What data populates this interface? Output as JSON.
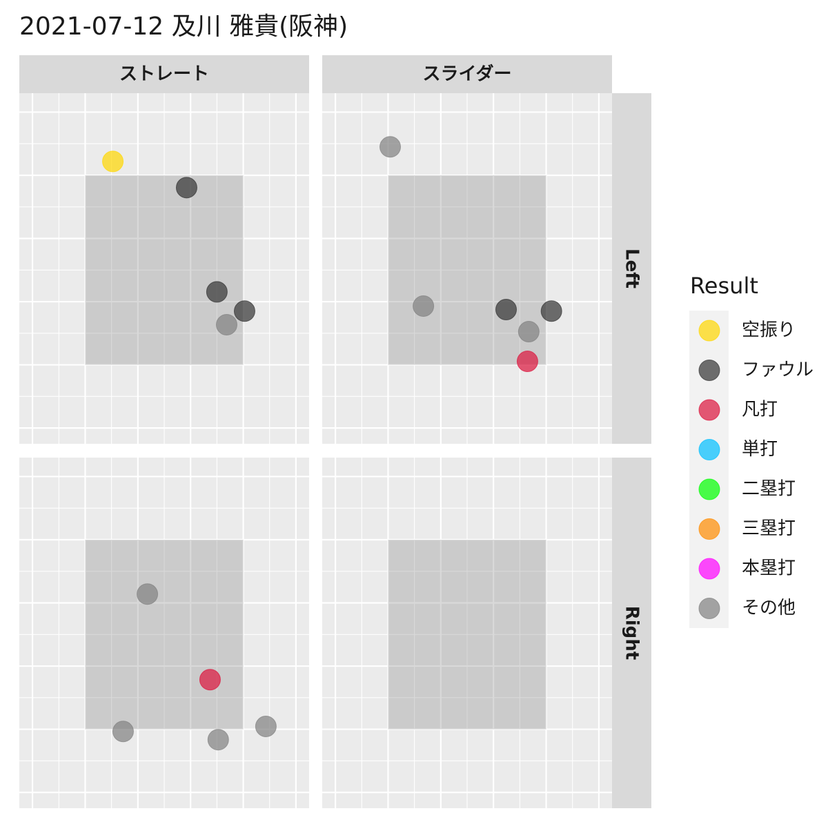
{
  "chart_data": {
    "type": "scatter",
    "title": "2021-07-12 及川 雅貴(阪神)",
    "columns": [
      "ストレート",
      "スライダー"
    ],
    "rows": [
      "Left",
      "Right"
    ],
    "legend_title": "Result",
    "xlim": [
      -2.5,
      8.5
    ],
    "ylim": [
      -2.5,
      8.6
    ],
    "xticks": [
      -2,
      -1,
      0,
      1,
      2,
      3,
      4,
      5,
      6,
      7,
      8
    ],
    "yticks": [
      -2,
      -1,
      0,
      1,
      2,
      3,
      4,
      5,
      6,
      7,
      8
    ],
    "grid": true,
    "zone_x": [
      0,
      6
    ],
    "zone_y": [
      0,
      6
    ],
    "series": [
      {
        "name": "空振り",
        "color": "#FFD700",
        "x": [
          [
            1.05
          ],
          [],
          [],
          []
        ],
        "y": [
          [
            6.44
          ],
          [],
          [],
          []
        ]
      },
      {
        "name": "ファウル",
        "color": "#333333",
        "x": [
          [
            3.85,
            5.0,
            6.05
          ],
          [
            4.48,
            6.2
          ],
          [],
          []
        ],
        "y": [
          [
            5.61,
            2.31,
            1.7
          ],
          [
            1.75,
            1.7
          ],
          [],
          []
        ]
      },
      {
        "name": "凡打",
        "color": "#DC143C",
        "x": [
          [],
          [
            5.29
          ],
          [
            4.74
          ],
          []
        ],
        "y": [
          [],
          [
            0.11
          ],
          [
            1.57
          ],
          []
        ]
      },
      {
        "name": "単打",
        "color": "#00BFFF",
        "x": [
          [],
          [],
          [],
          []
        ],
        "y": [
          [],
          [],
          [],
          []
        ]
      },
      {
        "name": "二塁打",
        "color": "#00FF00",
        "x": [
          [],
          [],
          [],
          []
        ],
        "y": [
          [],
          [],
          [],
          []
        ]
      },
      {
        "name": "三塁打",
        "color": "#FF8C00",
        "x": [
          [],
          [],
          [],
          []
        ],
        "y": [
          [],
          [],
          [],
          []
        ]
      },
      {
        "name": "本塁打",
        "color": "#FF00FF",
        "x": [
          [],
          [],
          [],
          []
        ],
        "y": [
          [],
          [],
          [],
          []
        ]
      },
      {
        "name": "その他",
        "color": "#808080",
        "x": [
          [
            5.37
          ],
          [
            0.08,
            1.34,
            5.34
          ],
          [
            2.36,
            1.44,
            5.05,
            6.86
          ],
          []
        ],
        "y": [
          [
            1.27
          ],
          [
            6.9,
            1.86,
            1.05
          ],
          [
            4.28,
            -0.07,
            -0.33,
            0.09
          ],
          []
        ]
      }
    ]
  }
}
